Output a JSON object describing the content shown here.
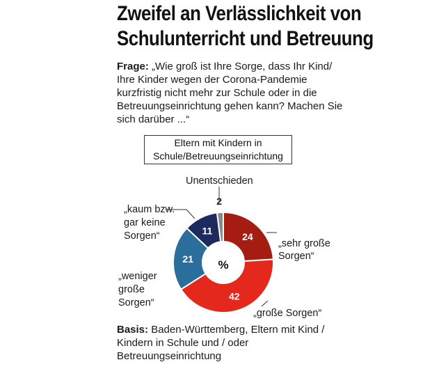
{
  "title": {
    "line1": "Zweifel an Verlässlichkeit von",
    "line2": "Schulunterricht und Betreuung"
  },
  "question": {
    "prefix": "Frage:",
    "text": " „Wie groß ist Ihre Sorge, dass Ihr Kind/ Ihre Kinder wegen der Corona-Pandemie kurzfristig nicht mehr zur Schule oder in die Betreuungseinrichtung gehen kann? Machen Sie sich darüber ...“"
  },
  "group_label": "Eltern mit Kindern in Schule/Betreuungseinrichtung",
  "basis": {
    "prefix": "Basis:",
    "text": " Baden-Württemberg, Eltern mit Kind / Kindern in Schule und / oder Betreuungseinrichtung"
  },
  "colors": {
    "sehr_grosse": "#a51c12",
    "grosse": "#e4291c",
    "weniger": "#2a6e9c",
    "kaum": "#1d2a5e",
    "unentschieden": "#8a8a8a"
  },
  "chart_data": {
    "type": "pie",
    "center_label": "%",
    "slices": [
      {
        "label": "„sehr große Sorgen“",
        "value": 24,
        "color": "#a51c12"
      },
      {
        "label": "„große Sorgen“",
        "value": 42,
        "color": "#e4291c"
      },
      {
        "label": "„weniger große Sorgen“",
        "value": 21,
        "color": "#2a6e9c"
      },
      {
        "label": "„kaum bzw. gar keine Sorgen“",
        "value": 11,
        "color": "#1d2a5e"
      },
      {
        "label": "Unentschieden",
        "value": 2,
        "color": "#8a8a8a"
      }
    ]
  }
}
